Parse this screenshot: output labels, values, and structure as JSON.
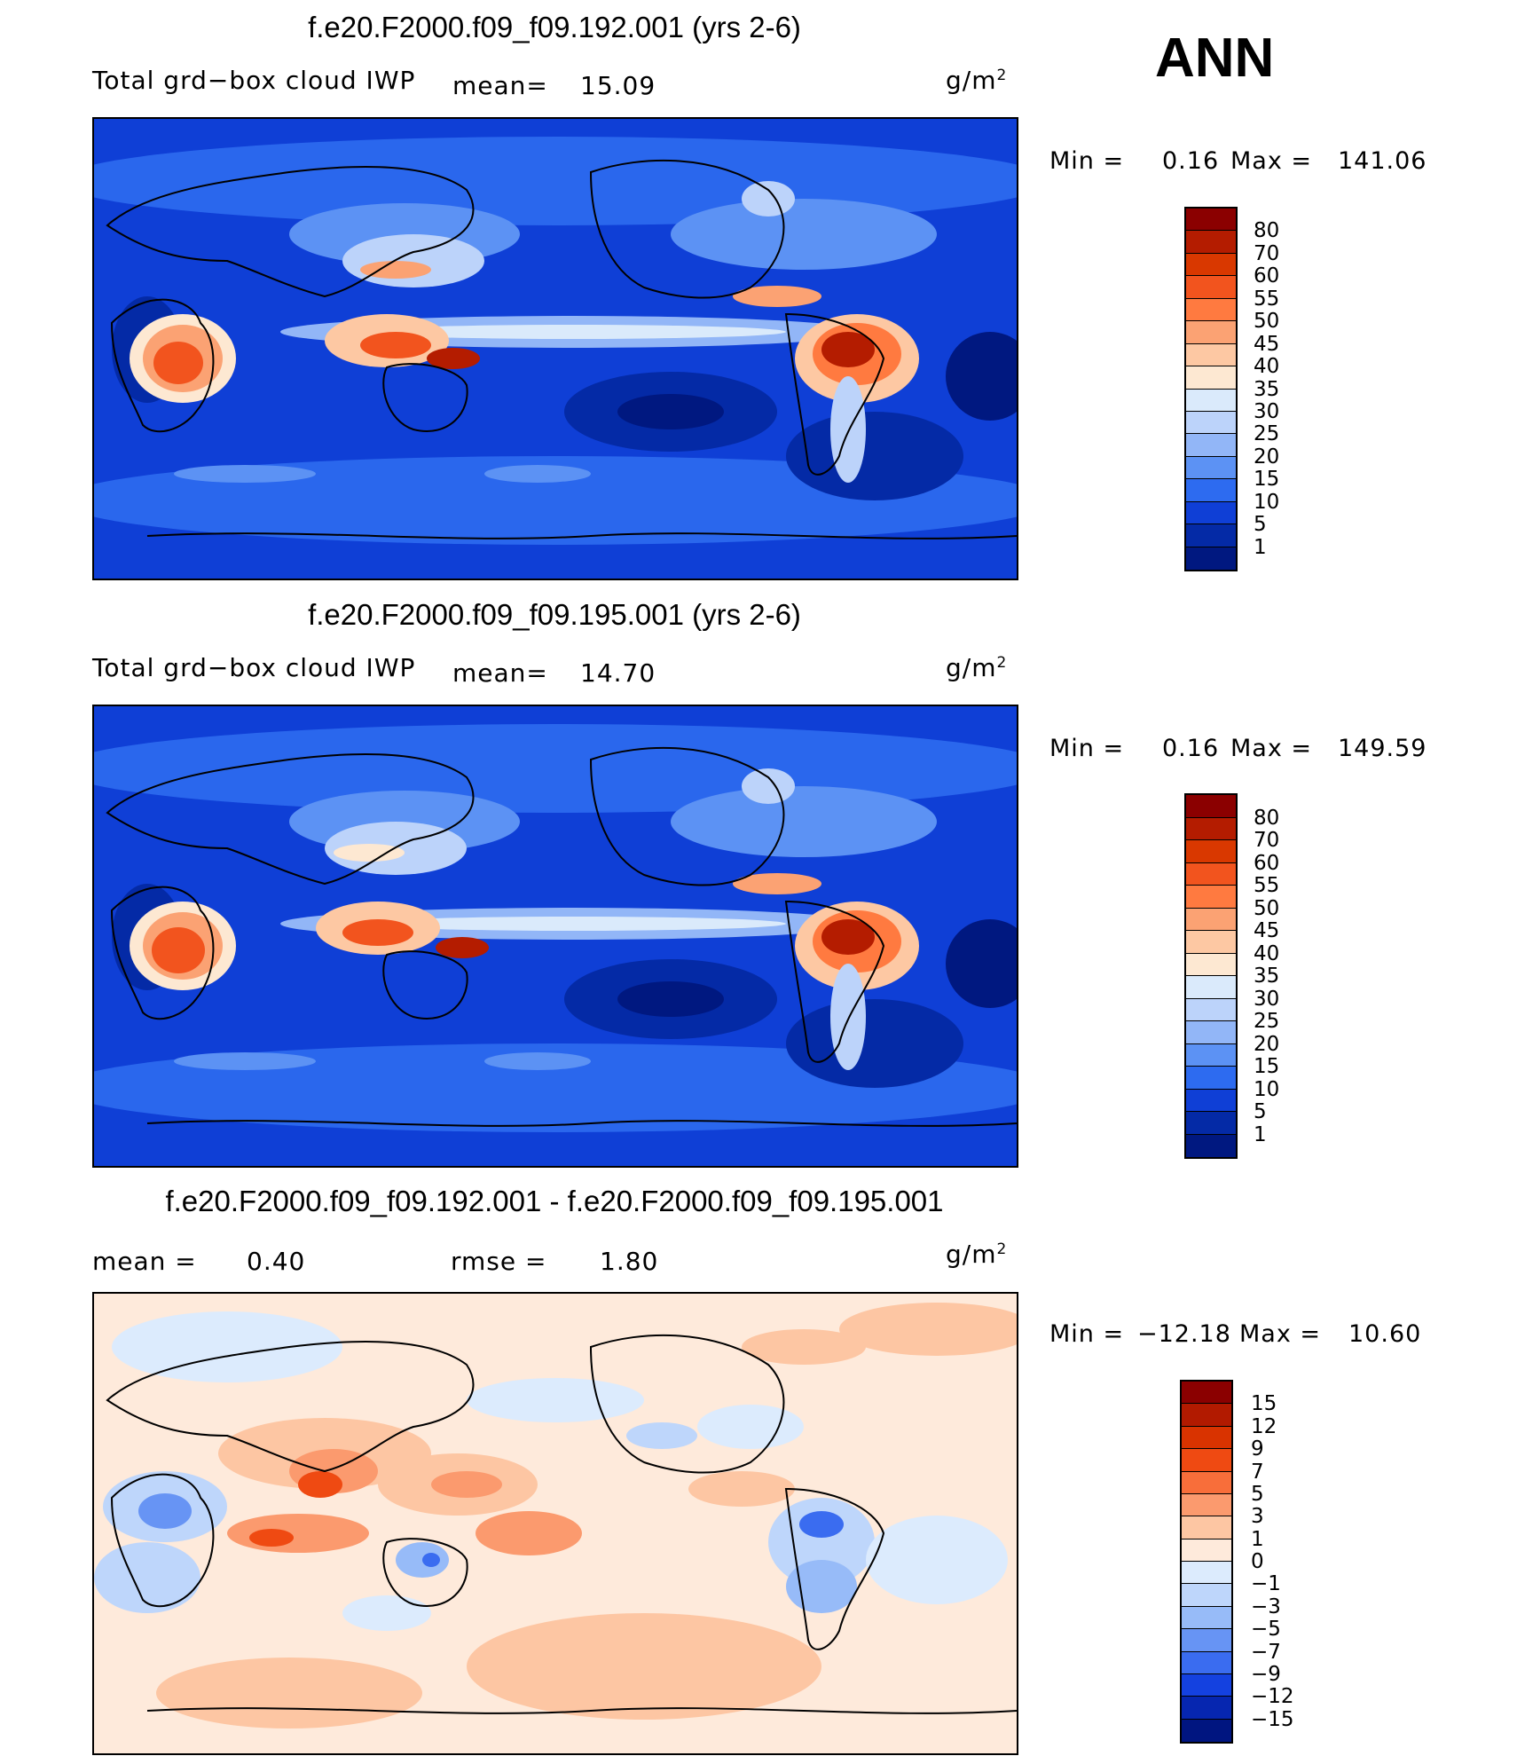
{
  "season": "ANN",
  "panels": [
    {
      "title": "f.e20.F2000.f09_f09.192.001 (yrs 2-6)",
      "variable": "Total grd−box cloud IWP",
      "mean_label": "mean=",
      "mean_value": "15.09",
      "units_base": "g/m",
      "units_exp": "2",
      "min_label": "Min  =",
      "min_value": "0.16",
      "max_label": "Max  =",
      "max_value": "141.06",
      "colorbar_labels": [
        "80",
        "70",
        "60",
        "55",
        "50",
        "45",
        "40",
        "35",
        "30",
        "25",
        "20",
        "15",
        "10",
        "5",
        "1"
      ],
      "colors": [
        "#8b0000",
        "#b41c00",
        "#d93800",
        "#f2541e",
        "#ff7a40",
        "#fba273",
        "#fdc8a3",
        "#fde8d2",
        "#daeafb",
        "#bcd3fa",
        "#92b6f7",
        "#5c92f4",
        "#2d6bf0",
        "#0f3fd6",
        "#042aa6",
        "#001880"
      ]
    },
    {
      "title": "f.e20.F2000.f09_f09.195.001 (yrs 2-6)",
      "variable": "Total grd−box cloud IWP",
      "mean_label": "mean=",
      "mean_value": "14.70",
      "units_base": "g/m",
      "units_exp": "2",
      "min_label": "Min  =",
      "min_value": "0.16",
      "max_label": "Max  =",
      "max_value": "149.59",
      "colorbar_labels": [
        "80",
        "70",
        "60",
        "55",
        "50",
        "45",
        "40",
        "35",
        "30",
        "25",
        "20",
        "15",
        "10",
        "5",
        "1"
      ],
      "colors": [
        "#8b0000",
        "#b41c00",
        "#d93800",
        "#f2541e",
        "#ff7a40",
        "#fba273",
        "#fdc8a3",
        "#fde8d2",
        "#daeafb",
        "#bcd3fa",
        "#92b6f7",
        "#5c92f4",
        "#2d6bf0",
        "#0f3fd6",
        "#042aa6",
        "#001880"
      ]
    },
    {
      "title": "f.e20.F2000.f09_f09.192.001 - f.e20.F2000.f09_f09.195.001",
      "mean_label": "mean  =",
      "mean_value": "0.40",
      "rmse_label": "rmse  =",
      "rmse_value": "1.80",
      "units_base": "g/m",
      "units_exp": "2",
      "min_label": "Min  =",
      "min_value": "−12.18",
      "max_label": "Max  =",
      "max_value": "10.60",
      "colorbar_labels": [
        "15",
        "12",
        "9",
        "7",
        "5",
        "3",
        "1",
        "0",
        "−1",
        "−3",
        "−5",
        "−7",
        "−9",
        "−12",
        "−15"
      ],
      "colors": [
        "#8b0000",
        "#b21a00",
        "#d93300",
        "#ef4a12",
        "#f86e3a",
        "#fb9a6e",
        "#fdc6a3",
        "#feeadb",
        "#dcebfd",
        "#bed6fb",
        "#97bbf8",
        "#6794f4",
        "#3a6cf0",
        "#1441e0",
        "#0626b0",
        "#001580"
      ]
    }
  ]
}
